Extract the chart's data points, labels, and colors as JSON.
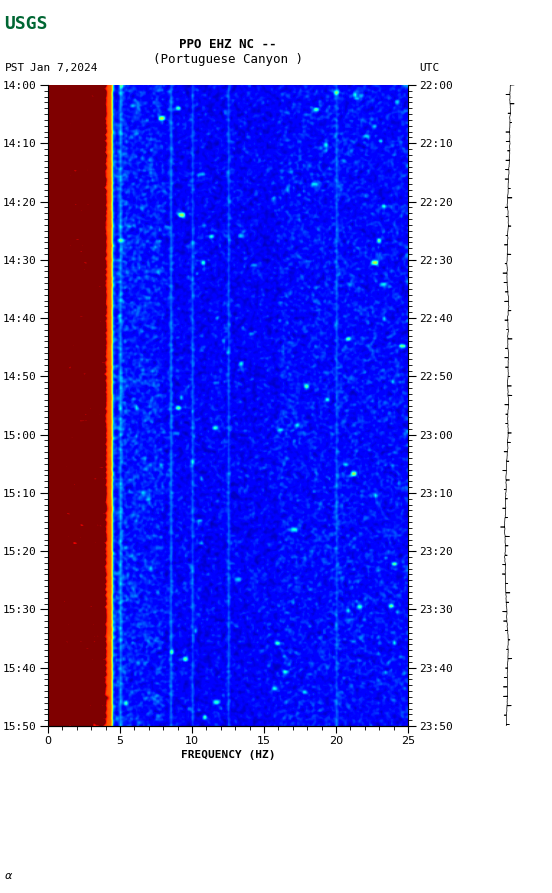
{
  "title_line1": "PPO EHZ NC --",
  "title_line2": "(Portuguese Canyon )",
  "date_label": "Jan 7,2024",
  "tz_left": "PST",
  "tz_right": "UTC",
  "freq_min": 0,
  "freq_max": 25,
  "ytick_labels_pst": [
    "14:00",
    "14:10",
    "14:20",
    "14:30",
    "14:40",
    "14:50",
    "15:00",
    "15:10",
    "15:20",
    "15:30",
    "15:40",
    "15:50"
  ],
  "ytick_labels_utc": [
    "22:00",
    "22:10",
    "22:20",
    "22:30",
    "22:40",
    "22:50",
    "23:00",
    "23:10",
    "23:20",
    "23:30",
    "23:40",
    "23:50"
  ],
  "xlabel": "FREQUENCY (HZ)",
  "background_color": "#ffffff",
  "colormap": "jet",
  "fig_width": 5.52,
  "fig_height": 8.93,
  "n_time": 110,
  "n_freq": 250,
  "logo_color": "#006633",
  "logo_text": "USGS"
}
